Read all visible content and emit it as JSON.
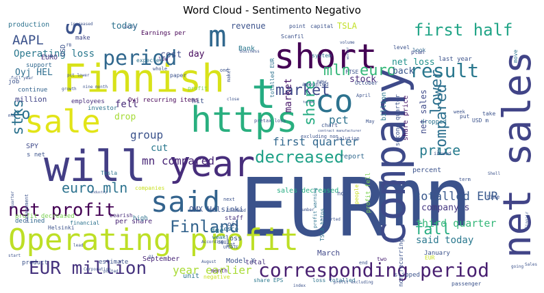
{
  "chart_data": {
    "type": "wordcloud",
    "title": "Word Cloud - Sentimento Negativo",
    "words": [
      {
        "text": "EUR",
        "weight": 100,
        "color": "#3b528b"
      },
      {
        "text": "mn",
        "weight": 96,
        "color": "#3b528b"
      },
      {
        "text": "company",
        "weight": 78,
        "color": "#3e4a89"
      },
      {
        "text": "net sales",
        "weight": 74,
        "color": "#414487"
      },
      {
        "text": "Finnish",
        "weight": 70,
        "color": "#d8e219"
      },
      {
        "text": "will",
        "weight": 68,
        "color": "#433e85"
      },
      {
        "text": "Operating profit",
        "weight": 64,
        "color": "#bddf26"
      },
      {
        "text": "t",
        "weight": 66,
        "color": "#25ac82"
      },
      {
        "text": "co",
        "weight": 58,
        "color": "#2c728e"
      },
      {
        "text": "https",
        "weight": 56,
        "color": "#29af7f"
      },
      {
        "text": "sale",
        "weight": 54,
        "color": "#e2e418"
      },
      {
        "text": "year",
        "weight": 52,
        "color": "#472d7b"
      },
      {
        "text": "short",
        "weight": 52,
        "color": "#440154"
      },
      {
        "text": "said",
        "weight": 46,
        "color": "#33638d"
      },
      {
        "text": "s",
        "weight": 45,
        "color": "#3b528b"
      },
      {
        "text": "m",
        "weight": 44,
        "color": "#31688e"
      },
      {
        "text": "corresponding period",
        "weight": 32,
        "color": "#481f70"
      },
      {
        "text": "EUR million",
        "weight": 30,
        "color": "#46337e"
      },
      {
        "text": "period",
        "weight": 30,
        "color": "#31688e"
      },
      {
        "text": "result",
        "weight": 28,
        "color": "#2a788e"
      },
      {
        "text": "net profit",
        "weight": 28,
        "color": "#440154"
      },
      {
        "text": "first half",
        "weight": 26,
        "color": "#20a486"
      },
      {
        "text": "decreased",
        "weight": 26,
        "color": "#1fa187"
      },
      {
        "text": "Finland",
        "weight": 24,
        "color": "#33638d"
      },
      {
        "text": "market",
        "weight": 24,
        "color": "#3e4a89"
      },
      {
        "text": "lower",
        "weight": 24,
        "color": "#2d708e"
      },
      {
        "text": "mln euro",
        "weight": 22,
        "color": "#35b779"
      },
      {
        "text": "share",
        "weight": 22,
        "color": "#25ac82"
      },
      {
        "text": "compared",
        "weight": 22,
        "color": "#2d708e"
      },
      {
        "text": "fall",
        "weight": 22,
        "color": "#27ad81"
      },
      {
        "text": "stks",
        "weight": 22,
        "color": "#2c728e"
      },
      {
        "text": "euro mln",
        "weight": 20,
        "color": "#2c728e"
      },
      {
        "text": "price",
        "weight": 20,
        "color": "#287c8e"
      },
      {
        "text": "AAPL",
        "weight": 19,
        "color": "#3b528b"
      },
      {
        "text": "totalled EUR",
        "weight": 17,
        "color": "#38588c"
      },
      {
        "text": "year earlier",
        "weight": 15,
        "color": "#a8db34"
      },
      {
        "text": "mn compared",
        "weight": 16,
        "color": "#482576"
      },
      {
        "text": "group",
        "weight": 16,
        "color": "#3b528b"
      },
      {
        "text": "first quarter",
        "weight": 16,
        "color": "#31688e"
      },
      {
        "text": "third quarter",
        "weight": 15,
        "color": "#35b779"
      },
      {
        "text": "said today",
        "weight": 14,
        "color": "#2a788e"
      },
      {
        "text": "Operating loss",
        "weight": 14,
        "color": "#2a788e"
      },
      {
        "text": "market",
        "weight": 14,
        "color": "#481769"
      },
      {
        "text": "pct",
        "weight": 16,
        "color": "#2c728e"
      },
      {
        "text": "company s",
        "weight": 13,
        "color": "#453781"
      },
      {
        "text": "Oyj HEL",
        "weight": 13,
        "color": "#2e6e8e"
      },
      {
        "text": "cut",
        "weight": 14,
        "color": "#2a788e"
      },
      {
        "text": "fell",
        "weight": 14,
        "color": "#472c7a"
      },
      {
        "text": "co",
        "weight": 22,
        "color": "#2c728e"
      },
      {
        "text": "net loss",
        "weight": 13,
        "color": "#21918c"
      },
      {
        "text": "back",
        "weight": 13,
        "color": "#39568c"
      },
      {
        "text": "stock",
        "weight": 13,
        "color": "#482878"
      },
      {
        "text": "cost",
        "weight": 13,
        "color": "#3d4d8a"
      },
      {
        "text": "day",
        "weight": 13,
        "color": "#460a5d"
      },
      {
        "text": "today",
        "weight": 13,
        "color": "#2c728e"
      },
      {
        "text": "TSLA",
        "weight": 12,
        "color": "#c2df23"
      },
      {
        "text": "revenue",
        "weight": 12,
        "color": "#3b528b"
      },
      {
        "text": "EURO",
        "weight": 10,
        "color": "#46327e"
      },
      {
        "text": "Bank",
        "weight": 10,
        "color": "#2a788e"
      },
      {
        "text": "drop",
        "weight": 13,
        "color": "#a5db36"
      },
      {
        "text": "OMX Helsinki",
        "weight": 11,
        "color": "#3b528b"
      },
      {
        "text": "million",
        "weight": 11,
        "color": "#414487"
      },
      {
        "text": "production",
        "weight": 10,
        "color": "#2c728e"
      },
      {
        "text": "make",
        "weight": 9,
        "color": "#3f4788"
      },
      {
        "text": "support",
        "weight": 9,
        "color": "#31688e"
      },
      {
        "text": "job",
        "weight": 9,
        "color": "#3b528b"
      },
      {
        "text": "continue",
        "weight": 9,
        "color": "#33638d"
      },
      {
        "text": "employees",
        "weight": 9,
        "color": "#472d7b"
      },
      {
        "text": "investor",
        "weight": 9,
        "color": "#2c728e"
      },
      {
        "text": "Oyj recurring items",
        "weight": 9,
        "color": "#440154"
      },
      {
        "text": "hit",
        "weight": 10,
        "color": "#3b528b"
      },
      {
        "text": "SPY",
        "weight": 10,
        "color": "#3e4989"
      },
      {
        "text": "s net",
        "weight": 9,
        "color": "#3b528b"
      },
      {
        "text": "Tesla",
        "weight": 8,
        "color": "#2c728e"
      },
      {
        "text": "due",
        "weight": 11,
        "color": "#2a788e"
      },
      {
        "text": "Tesco",
        "weight": 9,
        "color": "#31688e"
      },
      {
        "text": "staff",
        "weight": 9,
        "color": "#46317e"
      },
      {
        "text": "oil",
        "weight": 9,
        "color": "#3b528b"
      },
      {
        "text": "profit decreased",
        "weight": 9,
        "color": "#7ad151"
      },
      {
        "text": "bearish",
        "weight": 8,
        "color": "#472c7a"
      },
      {
        "text": "financial",
        "weight": 8,
        "color": "#2c728e"
      },
      {
        "text": "declined",
        "weight": 9,
        "color": "#31688e"
      },
      {
        "text": "per share",
        "weight": 10,
        "color": "#482475"
      },
      {
        "text": "high",
        "weight": 9,
        "color": "#2c728e"
      },
      {
        "text": "Helsinki",
        "weight": 8,
        "color": "#3b528b"
      },
      {
        "text": "weak",
        "weight": 8,
        "color": "#2a788e"
      },
      {
        "text": "product",
        "weight": 9,
        "color": "#3b528b"
      },
      {
        "text": "estimate",
        "weight": 9,
        "color": "#3b528b"
      },
      {
        "text": "September",
        "weight": 10,
        "color": "#482677"
      },
      {
        "text": "month",
        "weight": 8,
        "color": "#482475"
      },
      {
        "text": "Model X",
        "weight": 10,
        "color": "#3b528b"
      },
      {
        "text": "total",
        "weight": 10,
        "color": "#46327e"
      },
      {
        "text": "March",
        "weight": 11,
        "color": "#3f4788"
      },
      {
        "text": "two",
        "weight": 8,
        "color": "#482173"
      },
      {
        "text": "unit",
        "weight": 10,
        "color": "#2c728e"
      },
      {
        "text": "negative",
        "weight": 8,
        "color": "#c8e020"
      },
      {
        "text": "share EPS",
        "weight": 8,
        "color": "#2a788e"
      },
      {
        "text": "loss totalled",
        "weight": 8,
        "color": "#2c728e"
      },
      {
        "text": "January",
        "weight": 9,
        "color": "#3b528b"
      },
      {
        "text": "slipped",
        "weight": 9,
        "color": "#3b528b"
      },
      {
        "text": "passenger",
        "weight": 8,
        "color": "#3b528b"
      },
      {
        "text": "dropped",
        "weight": 9,
        "color": "#2c728e"
      },
      {
        "text": "percent",
        "weight": 10,
        "color": "#3b528b"
      },
      {
        "text": "billion",
        "weight": 10,
        "color": "#2a788e"
      },
      {
        "text": "second quarter",
        "weight": 9,
        "color": "#3b528b"
      },
      {
        "text": "share price",
        "weight": 10,
        "color": "#481769"
      },
      {
        "text": "net sales",
        "weight": 12,
        "color": "#3e4a89"
      },
      {
        "text": "look",
        "weight": 8,
        "color": "#31688e"
      },
      {
        "text": "plan",
        "weight": 8,
        "color": "#3e4989"
      },
      {
        "text": "last year",
        "weight": 9,
        "color": "#3b528b"
      },
      {
        "text": "level",
        "weight": 8,
        "color": "#3b528b"
      },
      {
        "text": "move",
        "weight": 8,
        "color": "#2c728e"
      },
      {
        "text": "Earnings per",
        "weight": 9,
        "color": "#440154"
      },
      {
        "text": "capital",
        "weight": 8,
        "color": "#3b528b"
      },
      {
        "text": "point",
        "weight": 8,
        "color": "#3b528b"
      },
      {
        "text": "Scanfil",
        "weight": 8,
        "color": "#3b528b"
      },
      {
        "text": "system",
        "weight": 8,
        "color": "#2c728e"
      },
      {
        "text": "FTSE",
        "weight": 8,
        "color": "#3b528b"
      },
      {
        "text": "October",
        "weight": 8,
        "color": "#3b528b"
      },
      {
        "text": "April",
        "weight": 7,
        "color": "#3b528b"
      },
      {
        "text": "amounted",
        "weight": 8,
        "color": "#3b528b"
      },
      {
        "text": "new",
        "weight": 8,
        "color": "#3b528b"
      },
      {
        "text": "paper",
        "weight": 8,
        "color": "#3b528b"
      },
      {
        "text": "low",
        "weight": 8,
        "color": "#482475"
      },
      {
        "text": "expected",
        "weight": 8,
        "color": "#2c728e"
      },
      {
        "text": "profit",
        "weight": 8,
        "color": "#7ad151"
      },
      {
        "text": "totalled EUR",
        "weight": 8,
        "color": "#2c728e"
      },
      {
        "text": "report",
        "weight": 10,
        "color": "#31688e"
      },
      {
        "text": "profit fell",
        "weight": 9,
        "color": "#7ad151"
      },
      {
        "text": "May",
        "weight": 7,
        "color": "#3b528b"
      },
      {
        "text": "chart",
        "weight": 8,
        "color": "#3b528b"
      },
      {
        "text": "solution",
        "weight": 7,
        "color": "#3b528b"
      },
      {
        "text": "excluding non",
        "weight": 7,
        "color": "#3b528b"
      },
      {
        "text": "sales decreased",
        "weight": 10,
        "color": "#25ac82"
      },
      {
        "text": "put",
        "weight": 8,
        "color": "#3b528b"
      },
      {
        "text": "take",
        "weight": 8,
        "color": "#3b528b"
      },
      {
        "text": "week",
        "weight": 7,
        "color": "#3b528b"
      },
      {
        "text": "issued",
        "weight": 7,
        "color": "#3b528b"
      },
      {
        "text": "term",
        "weight": 7,
        "color": "#3b528b"
      },
      {
        "text": "time",
        "weight": 8,
        "color": "#3b528b"
      },
      {
        "text": "now",
        "weight": 9,
        "color": "#3b528b"
      },
      {
        "text": "people",
        "weight": 8,
        "color": "#c8e020"
      },
      {
        "text": "reported",
        "weight": 6,
        "color": "#3b528b"
      },
      {
        "text": "next",
        "weight": 7,
        "color": "#3b528b"
      },
      {
        "text": "dividend",
        "weight": 6,
        "color": "#3b528b"
      },
      {
        "text": "number",
        "weight": 6,
        "color": "#3b528b"
      },
      {
        "text": "loss",
        "weight": 10,
        "color": "#3b528b"
      },
      {
        "text": "TSLA https",
        "weight": 8,
        "color": "#2c728e"
      },
      {
        "text": "profit warning",
        "weight": 7,
        "color": "#2c728e"
      },
      {
        "text": "non recurring",
        "weight": 8,
        "color": "#3b528b"
      },
      {
        "text": "end",
        "weight": 7,
        "color": "#3b528b"
      },
      {
        "text": "EUR",
        "weight": 8,
        "color": "#c8e020"
      },
      {
        "text": "August",
        "weight": 6,
        "color": "#3b528b"
      },
      {
        "text": "got",
        "weight": 7,
        "color": "#3b528b"
      },
      {
        "text": "SBUX",
        "weight": 7,
        "color": "#3b528b"
      },
      {
        "text": "UPDATE",
        "weight": 6,
        "color": "#3b528b"
      },
      {
        "text": "lead",
        "weight": 6,
        "color": "#3b528b"
      },
      {
        "text": "Q1",
        "weight": 6,
        "color": "#3b528b"
      },
      {
        "text": "start",
        "weight": 6,
        "color": "#3b528b"
      },
      {
        "text": "Corporation",
        "weight": 6,
        "color": "#3b528b"
      },
      {
        "text": "posted",
        "weight": 6,
        "color": "#3b528b"
      },
      {
        "text": "According",
        "weight": 6,
        "color": "#3b528b"
      },
      {
        "text": "quarter",
        "weight": 7,
        "color": "#3b528b"
      },
      {
        "text": "management",
        "weight": 5,
        "color": "#3b528b"
      },
      {
        "text": "industry",
        "weight": 8,
        "color": "#3b528b"
      },
      {
        "text": "companies",
        "weight": 6,
        "color": "#c8e020"
      },
      {
        "text": "mln",
        "weight": 7,
        "color": "#3b528b"
      },
      {
        "text": "pretax loss",
        "weight": 6,
        "color": "#3b528b"
      },
      {
        "text": "close",
        "weight": 7,
        "color": "#3b528b"
      },
      {
        "text": "whole",
        "weight": 7,
        "color": "#3b528b"
      },
      {
        "text": "one",
        "weight": 7,
        "color": "#3b528b"
      },
      {
        "text": "maker",
        "weight": 6,
        "color": "#3b528b"
      },
      {
        "text": "pct lower",
        "weight": 6,
        "color": "#3b528b"
      },
      {
        "text": "growth",
        "weight": 6,
        "color": "#3b528b"
      },
      {
        "text": "nine month",
        "weight": 6,
        "color": "#3b528b"
      },
      {
        "text": "full year",
        "weight": 6,
        "color": "#3b528b"
      },
      {
        "text": "business",
        "weight": 6,
        "color": "#3b528b"
      },
      {
        "text": "increased",
        "weight": 6,
        "color": "#3b528b"
      },
      {
        "text": "daily",
        "weight": 6,
        "color": "#3b528b"
      },
      {
        "text": "FB",
        "weight": 10,
        "color": "#3b528b"
      },
      {
        "text": "USD",
        "weight": 8,
        "color": "#3b528b"
      },
      {
        "text": "USD m",
        "weight": 6,
        "color": "#3b528b"
      },
      {
        "text": "Shell",
        "weight": 6,
        "color": "#3b528b"
      },
      {
        "text": "Sales",
        "weight": 6,
        "color": "#3b528b"
      },
      {
        "text": "going",
        "weight": 6,
        "color": "#3b528b"
      },
      {
        "text": "profit excluding",
        "weight": 6,
        "color": "#3b528b"
      },
      {
        "text": "index",
        "weight": 6,
        "color": "#3b528b"
      },
      {
        "text": "volume",
        "weight": 6,
        "color": "#3b528b"
      },
      {
        "text": "worker",
        "weight": 6,
        "color": "#3b528b"
      },
      {
        "text": "Finnair",
        "weight": 6,
        "color": "#3b528b"
      },
      {
        "text": "ADPnews",
        "weight": 5,
        "color": "#3b528b"
      },
      {
        "text": "target",
        "weight": 5,
        "color": "#3b528b"
      },
      {
        "text": "contract manufacturer",
        "weight": 5,
        "color": "#3b528b"
      }
    ]
  }
}
